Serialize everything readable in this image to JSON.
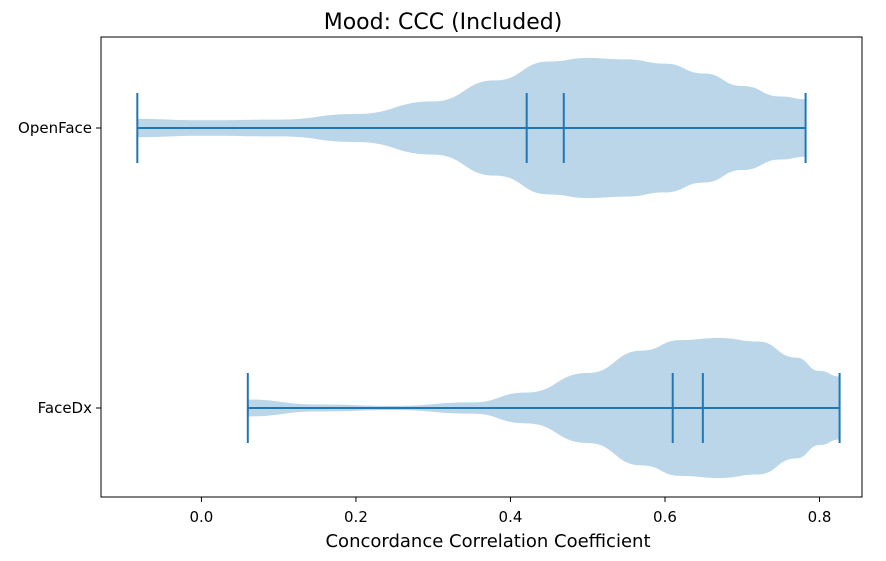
{
  "chart_data": {
    "type": "violin",
    "orientation": "horizontal",
    "title": "Mood: CCC (Included)",
    "xlabel": "Concordance Correlation Coefficient",
    "ylabel": "",
    "xlim": [
      -0.13,
      0.855
    ],
    "xticks": [
      "0.0",
      "0.2",
      "0.4",
      "0.6",
      "0.8"
    ],
    "grid": false,
    "color": "#1f77b4",
    "fill_color": "#bad6e8",
    "series": [
      {
        "name": "OpenFace",
        "min": -0.083,
        "max": 0.782,
        "mean": 0.469,
        "median": 0.421,
        "density": [
          [
            -0.083,
            0.13
          ],
          [
            0.0,
            0.11
          ],
          [
            0.1,
            0.12
          ],
          [
            0.2,
            0.2
          ],
          [
            0.3,
            0.38
          ],
          [
            0.38,
            0.68
          ],
          [
            0.45,
            0.95
          ],
          [
            0.5,
            1.0
          ],
          [
            0.55,
            0.98
          ],
          [
            0.6,
            0.92
          ],
          [
            0.65,
            0.78
          ],
          [
            0.7,
            0.6
          ],
          [
            0.75,
            0.45
          ],
          [
            0.782,
            0.41
          ]
        ]
      },
      {
        "name": "FaceDx",
        "min": 0.06,
        "max": 0.826,
        "mean": 0.649,
        "median": 0.61,
        "density": [
          [
            0.06,
            0.12
          ],
          [
            0.15,
            0.05
          ],
          [
            0.25,
            0.03
          ],
          [
            0.35,
            0.08
          ],
          [
            0.42,
            0.22
          ],
          [
            0.5,
            0.5
          ],
          [
            0.57,
            0.82
          ],
          [
            0.62,
            0.97
          ],
          [
            0.67,
            1.0
          ],
          [
            0.72,
            0.95
          ],
          [
            0.77,
            0.72
          ],
          [
            0.8,
            0.53
          ],
          [
            0.826,
            0.45
          ]
        ]
      }
    ]
  }
}
